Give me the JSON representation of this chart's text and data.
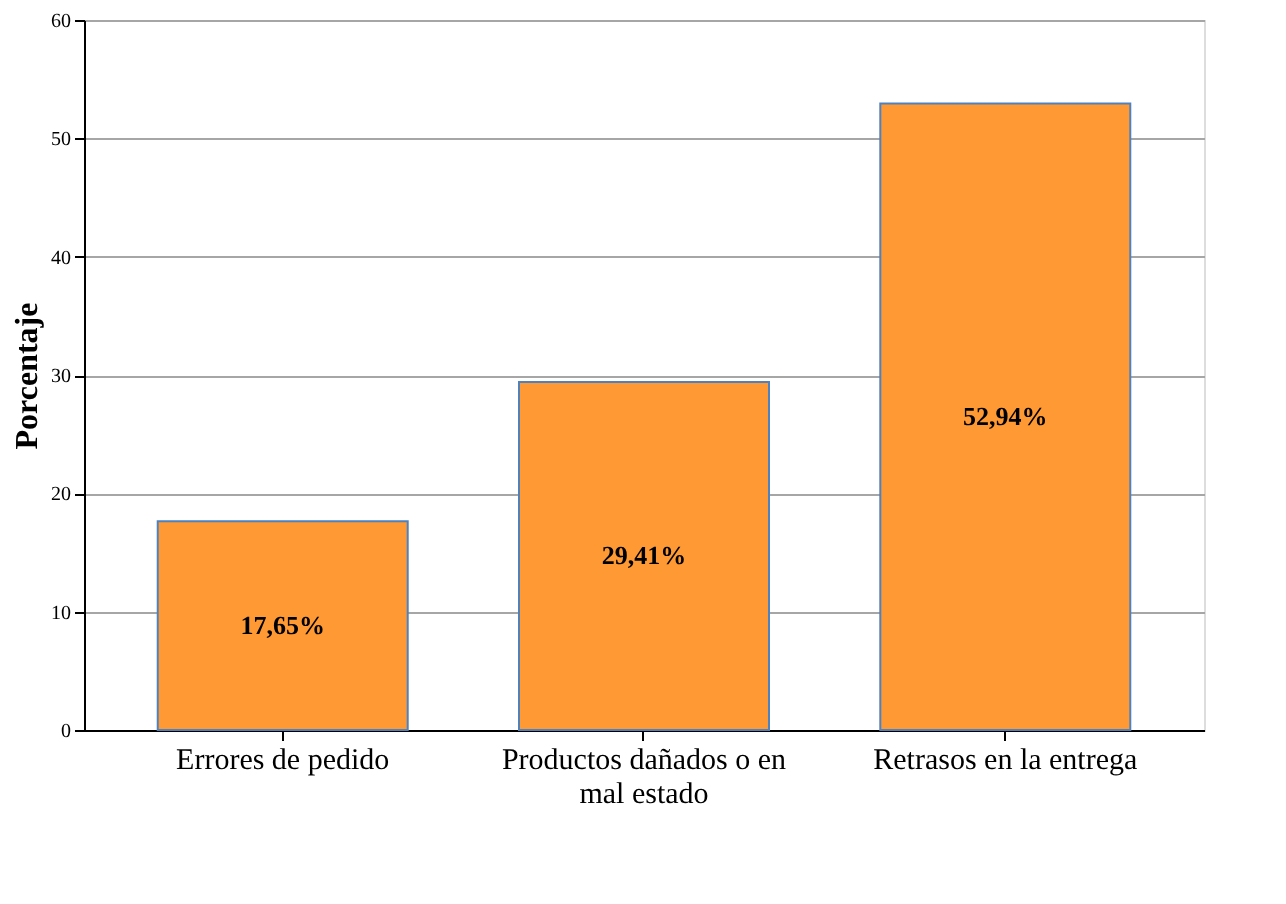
{
  "chart_data": {
    "type": "bar",
    "ylabel": "Porcentaje",
    "categories": [
      "Errores de pedido",
      "Productos dañados o en mal estado",
      "Retrasos en la entrega"
    ],
    "values": [
      17.65,
      29.41,
      52.94
    ],
    "value_labels": [
      "17,65%",
      "29,41%",
      "52,94%"
    ],
    "color": "#ff9933",
    "ylim": [
      0,
      60
    ],
    "yticks": [
      0,
      10,
      20,
      30,
      40,
      50,
      60
    ],
    "grid": "y"
  }
}
